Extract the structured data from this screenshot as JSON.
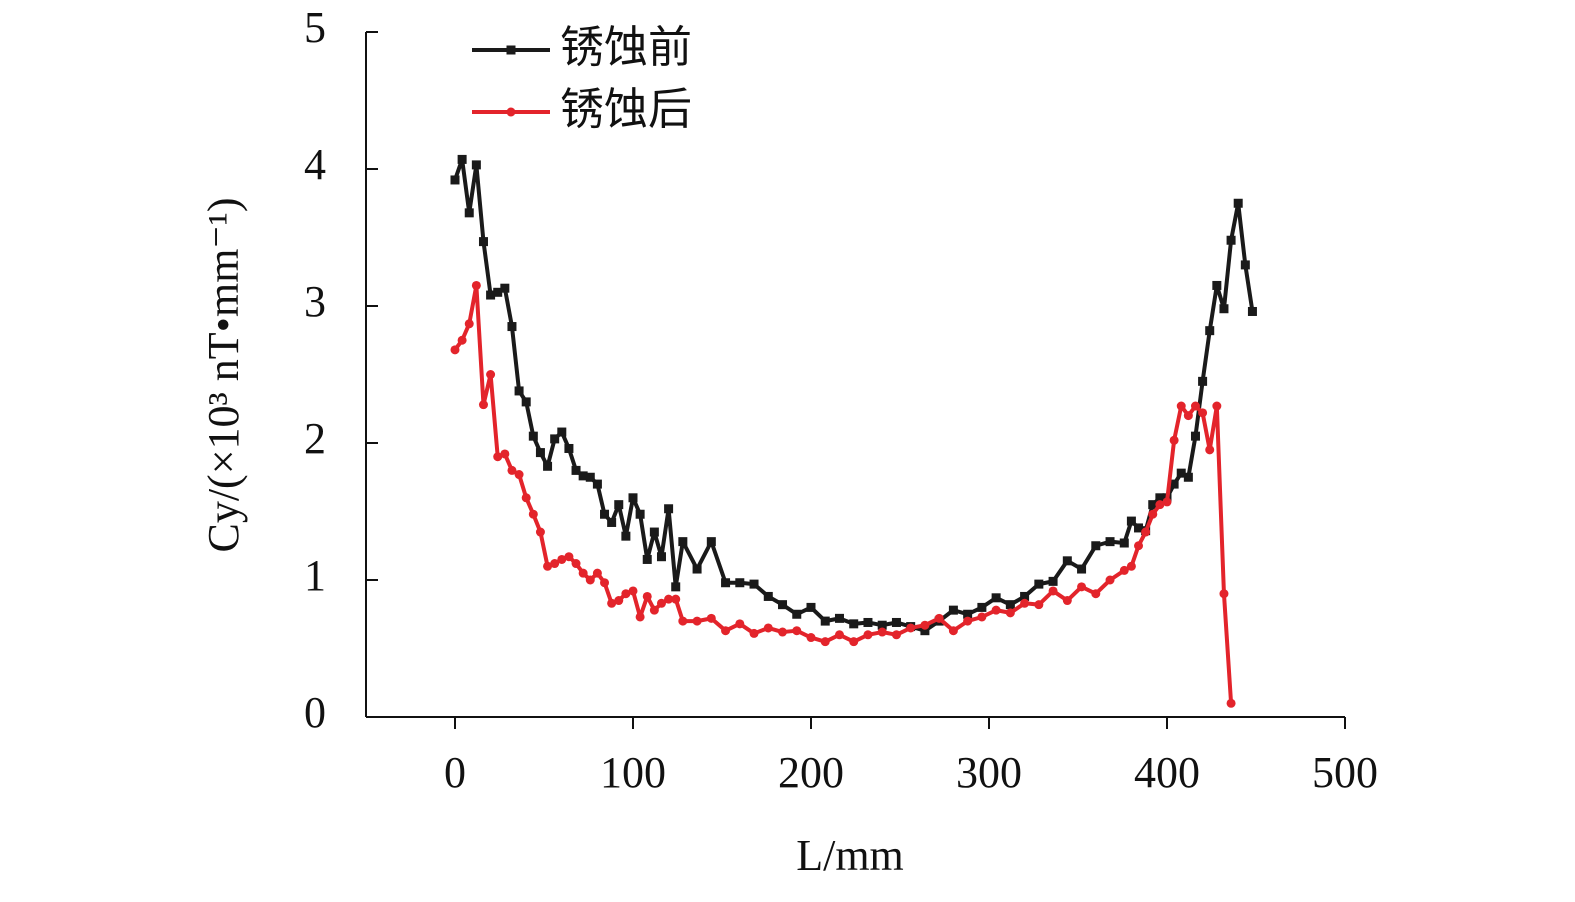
{
  "chart_data": {
    "type": "line",
    "xlabel": "L/mm",
    "ylabel": "Cy/(×10³ nT•mm⁻¹)",
    "xlim": [
      -50,
      500
    ],
    "xticks": [
      0,
      100,
      200,
      300,
      400,
      500
    ],
    "ylim": [
      0,
      5
    ],
    "yticks": [
      0,
      1,
      2,
      3,
      4,
      5
    ],
    "legend": "top-left",
    "x": [
      0,
      4,
      8,
      12,
      16,
      20,
      24,
      28,
      32,
      36,
      40,
      44,
      48,
      52,
      56,
      60,
      64,
      68,
      72,
      76,
      80,
      84,
      88,
      92,
      96,
      100,
      104,
      108,
      112,
      116,
      120,
      124,
      128,
      136,
      144,
      152,
      160,
      168,
      176,
      184,
      192,
      200,
      208,
      216,
      224,
      232,
      240,
      248,
      256,
      264,
      272,
      280,
      288,
      296,
      304,
      312,
      320,
      328,
      336,
      344,
      352,
      360,
      368,
      376,
      380,
      384,
      388,
      392,
      396,
      400,
      404,
      408,
      412,
      416,
      420,
      424,
      428,
      432,
      436,
      440,
      444,
      448
    ],
    "series": [
      {
        "name": "锈蚀前",
        "color": "#1a1a1a",
        "marker": "square",
        "values": [
          3.92,
          4.07,
          3.68,
          4.03,
          3.47,
          3.08,
          3.1,
          3.13,
          2.85,
          2.38,
          2.3,
          2.05,
          1.93,
          1.83,
          2.03,
          2.08,
          1.96,
          1.8,
          1.76,
          1.75,
          1.7,
          1.48,
          1.42,
          1.55,
          1.32,
          1.6,
          1.48,
          1.15,
          1.35,
          1.17,
          1.52,
          0.95,
          1.28,
          1.08,
          1.28,
          0.98,
          0.98,
          0.97,
          0.88,
          0.82,
          0.75,
          0.8,
          0.7,
          0.72,
          0.68,
          0.69,
          0.67,
          0.69,
          0.66,
          0.63,
          0.7,
          0.78,
          0.75,
          0.8,
          0.87,
          0.82,
          0.88,
          0.97,
          0.99,
          1.14,
          1.08,
          1.25,
          1.28,
          1.27,
          1.43,
          1.38,
          1.36,
          1.55,
          1.6,
          1.6,
          1.7,
          1.78,
          1.75,
          2.05,
          2.45,
          2.82,
          3.15,
          2.98,
          3.48,
          3.75,
          3.3,
          2.96
        ]
      },
      {
        "name": "锈蚀后",
        "color": "#e3242b",
        "marker": "circle",
        "values": [
          2.68,
          2.75,
          2.87,
          3.15,
          2.28,
          2.5,
          1.9,
          1.92,
          1.8,
          1.77,
          1.6,
          1.48,
          1.35,
          1.1,
          1.12,
          1.15,
          1.17,
          1.12,
          1.05,
          1.0,
          1.05,
          0.98,
          0.83,
          0.85,
          0.9,
          0.92,
          0.73,
          0.88,
          0.78,
          0.83,
          0.86,
          0.86,
          0.7,
          0.7,
          0.72,
          0.63,
          0.68,
          0.61,
          0.65,
          0.62,
          0.63,
          0.58,
          0.55,
          0.6,
          0.55,
          0.6,
          0.62,
          0.6,
          0.65,
          0.67,
          0.72,
          0.63,
          0.7,
          0.73,
          0.78,
          0.76,
          0.83,
          0.82,
          0.92,
          0.85,
          0.95,
          0.9,
          1.0,
          1.07,
          1.1,
          1.25,
          1.35,
          1.48,
          1.55,
          1.57,
          2.02,
          2.27,
          2.2,
          2.27,
          2.22,
          1.95,
          2.27,
          0.9,
          0.1,
          null,
          null,
          null
        ]
      }
    ]
  }
}
